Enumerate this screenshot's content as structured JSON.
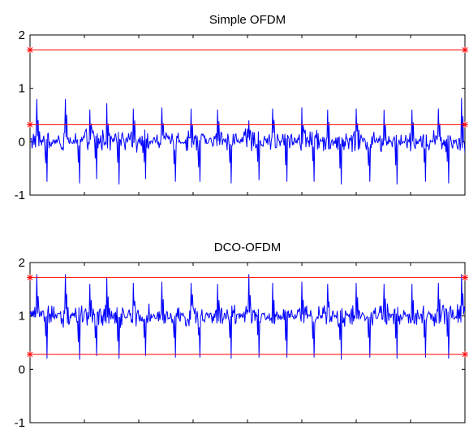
{
  "chart_data": [
    {
      "type": "line",
      "title": "Simple OFDM",
      "xlabel": "",
      "ylabel": "",
      "ylim": [
        -1,
        2
      ],
      "yticks": [
        -1,
        0,
        1,
        2
      ],
      "xlim": [
        0,
        640
      ],
      "grid": false,
      "colors": {
        "signal": "#0000ff",
        "threshold": "#ff0000",
        "axes": "#000000"
      },
      "series": [
        {
          "role": "signal",
          "baseline": 0.02,
          "peaks": [
            {
              "x": 10,
              "value": 0.8
            },
            {
              "x": 25,
              "value": -0.75
            },
            {
              "x": 52,
              "value": 0.8
            },
            {
              "x": 73,
              "value": -0.78
            },
            {
              "x": 88,
              "value": 0.6
            },
            {
              "x": 98,
              "value": -0.7
            },
            {
              "x": 113,
              "value": 0.72
            },
            {
              "x": 131,
              "value": -0.8
            },
            {
              "x": 152,
              "value": 0.62
            },
            {
              "x": 170,
              "value": -0.7
            },
            {
              "x": 194,
              "value": 0.64
            },
            {
              "x": 214,
              "value": -0.75
            },
            {
              "x": 237,
              "value": 0.62
            },
            {
              "x": 250,
              "value": -0.75
            },
            {
              "x": 276,
              "value": 0.6
            },
            {
              "x": 296,
              "value": -0.78
            },
            {
              "x": 322,
              "value": 0.4
            },
            {
              "x": 337,
              "value": -0.72
            },
            {
              "x": 357,
              "value": 0.62
            },
            {
              "x": 378,
              "value": -0.75
            },
            {
              "x": 400,
              "value": 0.64
            },
            {
              "x": 418,
              "value": -0.75
            },
            {
              "x": 438,
              "value": 0.6
            },
            {
              "x": 458,
              "value": -0.8
            },
            {
              "x": 480,
              "value": 0.62
            },
            {
              "x": 500,
              "value": -0.75
            },
            {
              "x": 521,
              "value": 0.6
            },
            {
              "x": 540,
              "value": -0.8
            },
            {
              "x": 562,
              "value": 0.6
            },
            {
              "x": 582,
              "value": -0.75
            },
            {
              "x": 601,
              "value": 0.62
            },
            {
              "x": 616,
              "value": -0.78
            },
            {
              "x": 635,
              "value": 0.82
            }
          ]
        },
        {
          "role": "threshold",
          "y": 1.72
        },
        {
          "role": "threshold",
          "y": 0.32
        }
      ]
    },
    {
      "type": "line",
      "title": "DCO-OFDM",
      "xlabel": "",
      "ylabel": "",
      "ylim": [
        -1,
        2
      ],
      "yticks": [
        -1,
        0,
        1,
        2
      ],
      "xlim": [
        0,
        640
      ],
      "grid": false,
      "colors": {
        "signal": "#0000ff",
        "threshold": "#ff0000",
        "axes": "#000000"
      },
      "series": [
        {
          "role": "signal",
          "baseline": 1.0,
          "peaks": [
            {
              "x": 10,
              "value": 1.78
            },
            {
              "x": 25,
              "value": 0.2
            },
            {
              "x": 52,
              "value": 1.78
            },
            {
              "x": 73,
              "value": 0.18
            },
            {
              "x": 88,
              "value": 1.6
            },
            {
              "x": 98,
              "value": 0.25
            },
            {
              "x": 113,
              "value": 1.72
            },
            {
              "x": 131,
              "value": 0.2
            },
            {
              "x": 152,
              "value": 1.62
            },
            {
              "x": 170,
              "value": 0.25
            },
            {
              "x": 194,
              "value": 1.64
            },
            {
              "x": 214,
              "value": 0.22
            },
            {
              "x": 237,
              "value": 1.62
            },
            {
              "x": 250,
              "value": 0.22
            },
            {
              "x": 276,
              "value": 1.6
            },
            {
              "x": 296,
              "value": 0.2
            },
            {
              "x": 322,
              "value": 1.78
            },
            {
              "x": 337,
              "value": 0.22
            },
            {
              "x": 357,
              "value": 1.62
            },
            {
              "x": 378,
              "value": 0.22
            },
            {
              "x": 400,
              "value": 1.64
            },
            {
              "x": 418,
              "value": 0.22
            },
            {
              "x": 438,
              "value": 1.6
            },
            {
              "x": 458,
              "value": 0.18
            },
            {
              "x": 480,
              "value": 1.62
            },
            {
              "x": 500,
              "value": 0.22
            },
            {
              "x": 521,
              "value": 1.6
            },
            {
              "x": 540,
              "value": 0.2
            },
            {
              "x": 562,
              "value": 1.6
            },
            {
              "x": 582,
              "value": 0.22
            },
            {
              "x": 601,
              "value": 1.62
            },
            {
              "x": 616,
              "value": 0.2
            },
            {
              "x": 635,
              "value": 1.78
            }
          ]
        },
        {
          "role": "threshold",
          "y": 1.72
        },
        {
          "role": "threshold",
          "y": 0.28
        }
      ]
    }
  ]
}
